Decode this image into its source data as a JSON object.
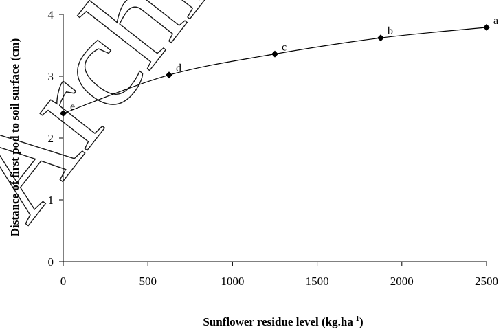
{
  "watermark": "Archive",
  "chart_data": {
    "type": "line",
    "title": "",
    "xlabel": "Sunflower residue level (kg.ha",
    "xlabel_sup": "-1",
    "xlabel_end": ")",
    "ylabel": "Distance of first pod to soil surface (cm)",
    "xlim": [
      0,
      2500
    ],
    "ylim": [
      0,
      4
    ],
    "xticks": [
      0,
      500,
      1000,
      1500,
      2000,
      2500
    ],
    "yticks": [
      0,
      1,
      2,
      3,
      4
    ],
    "grid": false,
    "marker": "diamond",
    "series": [
      {
        "x": [
          0,
          625,
          1250,
          1875,
          2500
        ],
        "y": [
          2.4,
          3.02,
          3.36,
          3.62,
          3.79
        ],
        "labels": [
          "e",
          "d",
          "c",
          "b",
          "a"
        ]
      }
    ]
  }
}
